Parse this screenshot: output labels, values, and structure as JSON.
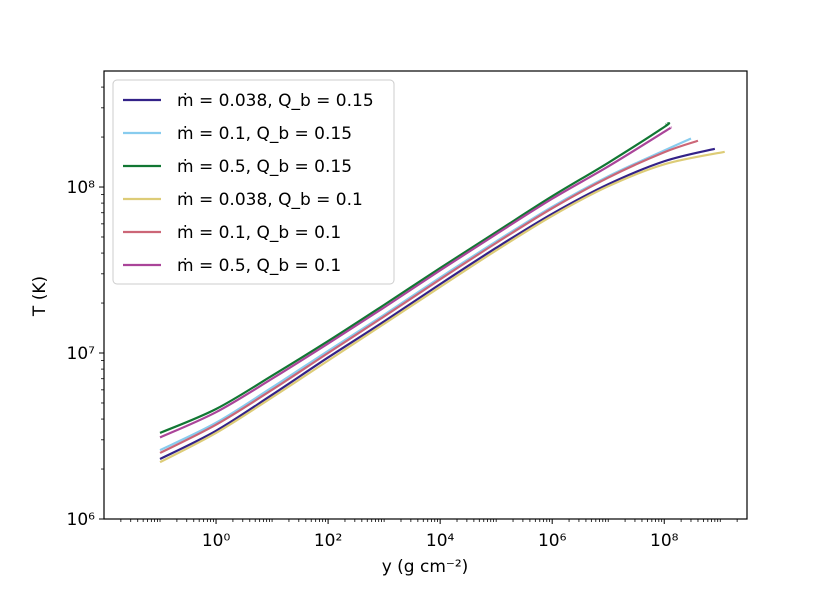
{
  "chart_data": {
    "type": "line",
    "xlabel": "y (g cm⁻²)",
    "ylabel": "T (K)",
    "x_scale": "log",
    "y_scale": "log",
    "xlim": [
      0.01,
      3000000000
    ],
    "ylim": [
      1000000,
      500000000
    ],
    "grid": false,
    "legend_placement": "upper-left",
    "x_ticks": [
      {
        "value": 1,
        "label": "10⁰"
      },
      {
        "value": 100,
        "label": "10²"
      },
      {
        "value": 10000,
        "label": "10⁴"
      },
      {
        "value": 1000000,
        "label": "10⁶"
      },
      {
        "value": 100000000,
        "label": "10⁸"
      }
    ],
    "y_ticks": [
      {
        "value": 1000000,
        "label": "10⁶"
      },
      {
        "value": 10000000,
        "label": "10⁷"
      },
      {
        "value": 100000000,
        "label": "10⁸"
      }
    ],
    "series": [
      {
        "name": "ṁ = 0.038, Q_b = 0.15",
        "color": "#332288",
        "x": [
          0.1,
          1,
          10,
          100,
          1000,
          10000,
          100000,
          1000000,
          10000000,
          100000000,
          800000000
        ],
        "y": [
          2300000,
          3400000,
          5600000,
          9400000,
          15500000,
          26000000,
          43000000,
          69000000,
          104000000,
          143000000,
          170000000
        ]
      },
      {
        "name": "ṁ = 0.1, Q_b = 0.15",
        "color": "#88CCEE",
        "x": [
          0.1,
          1,
          10,
          100,
          1000,
          10000,
          100000,
          1000000,
          10000000,
          100000000,
          300000000
        ],
        "y": [
          2600000,
          3800000,
          6200000,
          10300000,
          17000000,
          28500000,
          47000000,
          76000000,
          116000000,
          166000000,
          196000000
        ]
      },
      {
        "name": "ṁ = 0.5, Q_b = 0.15",
        "color": "#117733",
        "x": [
          0.1,
          1,
          10,
          100,
          1000,
          10000,
          100000,
          1000000,
          10000000,
          100000000,
          110000000
        ],
        "y": [
          3300000,
          4600000,
          7300000,
          11800000,
          19500000,
          32500000,
          53500000,
          88000000,
          140000000,
          230000000,
          240000000
        ]
      },
      {
        "name": "ṁ = 0.038, Q_b = 0.1",
        "color": "#DDCC77",
        "x": [
          0.1,
          1,
          10,
          100,
          1000,
          10000,
          100000,
          1000000,
          10000000,
          100000000,
          1200000000
        ],
        "y": [
          2200000,
          3300000,
          5400000,
          9000000,
          15000000,
          25000000,
          41500000,
          67000000,
          101000000,
          137000000,
          163000000
        ]
      },
      {
        "name": "ṁ = 0.1, Q_b = 0.1",
        "color": "#CC6677",
        "x": [
          0.1,
          1,
          10,
          100,
          1000,
          10000,
          100000,
          1000000,
          10000000,
          100000000,
          400000000
        ],
        "y": [
          2500000,
          3700000,
          6000000,
          10000000,
          16600000,
          27800000,
          46000000,
          74500000,
          114000000,
          162000000,
          190000000
        ]
      },
      {
        "name": "ṁ = 0.5, Q_b = 0.1",
        "color": "#AA4499",
        "x": [
          0.1,
          1,
          10,
          100,
          1000,
          10000,
          100000,
          1000000,
          10000000,
          100000000,
          130000000
        ],
        "y": [
          3100000,
          4400000,
          7000000,
          11400000,
          18800000,
          31500000,
          52000000,
          85000000,
          133000000,
          215000000,
          228000000
        ]
      }
    ]
  }
}
